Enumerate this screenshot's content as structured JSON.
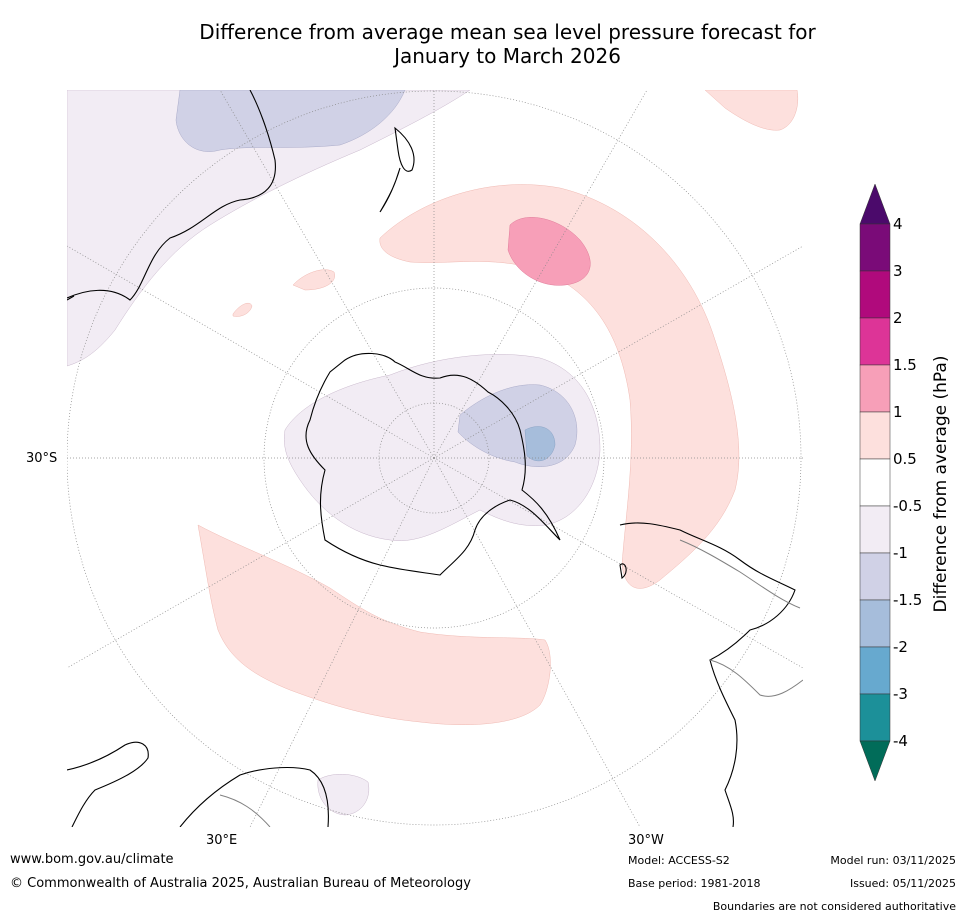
{
  "title_line1": "Difference from average mean sea level pressure forecast for",
  "title_line2": "January to March 2026",
  "map": {
    "projection": "south polar stereographic",
    "lat_label": "30°S",
    "lon_labels": [
      "30°E",
      "30°W"
    ],
    "colors": {
      "land_outline": "#000000",
      "border_outline": "#808080",
      "graticule": "#888888"
    }
  },
  "colorbar": {
    "title": "Difference from average (hPa)",
    "tick_labels": [
      "4",
      "3",
      "2",
      "1.5",
      "1",
      "0.5",
      "-0.5",
      "-1",
      "-1.5",
      "-2",
      "-3",
      "-4"
    ],
    "bins": [
      {
        "range": "above 4",
        "color": "#4b0a6b"
      },
      {
        "range": "3 to 4",
        "color": "#7a0b78"
      },
      {
        "range": "2 to 3",
        "color": "#b00a7c"
      },
      {
        "range": "1.5 to 2",
        "color": "#dd3497"
      },
      {
        "range": "1 to 1.5",
        "color": "#f79fb8"
      },
      {
        "range": "0.5 to 1",
        "color": "#fde0dd"
      },
      {
        "range": "-0.5 to 0.5",
        "color": "#ffffff"
      },
      {
        "range": "-1 to -0.5",
        "color": "#f2ecf4"
      },
      {
        "range": "-1.5 to -1",
        "color": "#d0d1e6"
      },
      {
        "range": "-2 to -1.5",
        "color": "#a6bddb"
      },
      {
        "range": "-3 to -2",
        "color": "#67a9cf"
      },
      {
        "range": "-4 to -3",
        "color": "#1c9099"
      },
      {
        "range": "below -4",
        "color": "#016c59"
      }
    ]
  },
  "footer": {
    "website": "www.bom.gov.au/climate",
    "copyright": "© Commonwealth of Australia 2025, Australian Bureau of Meteorology",
    "model": "Model: ACCESS-S2",
    "base_period": "Base period: 1981-2018",
    "model_run": "Model run: 03/11/2025",
    "issued": "Issued: 05/11/2025",
    "disclaimer": "Boundaries are not considered authoritative"
  }
}
